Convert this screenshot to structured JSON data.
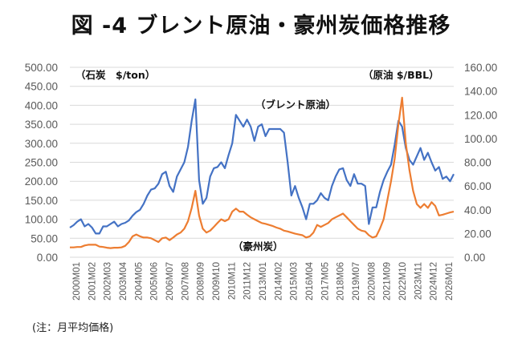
{
  "title": "図 -4 ブレント原油・豪州炭価格推移",
  "note": "(注：月平均価格)",
  "chart_data": {
    "type": "line",
    "title": "図 -4 ブレント原油・豪州炭価格推移",
    "left_axis": {
      "label": "（石炭　$/ton）",
      "range": [
        0,
        500
      ],
      "ticks": [
        "0.00",
        "50.00",
        "100.00",
        "150.00",
        "200.00",
        "250.00",
        "300.00",
        "350.00",
        "400.00",
        "450.00",
        "500.00"
      ]
    },
    "right_axis": {
      "label": "（原油 $/BBL）",
      "range": [
        0,
        160
      ],
      "ticks": [
        "0.00",
        "20.00",
        "40.00",
        "60.00",
        "80.00",
        "100.00",
        "120.00",
        "140.00",
        "160.00"
      ]
    },
    "x_tick_labels": [
      "2000M01",
      "2001M02",
      "2002M03",
      "2003M04",
      "2004M05",
      "2005M06",
      "2006M07",
      "2007M08",
      "2008M09",
      "2009M10",
      "2010M11",
      "2011M12",
      "2013M01",
      "2014M02",
      "2015M03",
      "2016M04",
      "2017M05",
      "2018M06",
      "2019M07",
      "2020M08",
      "2021M09",
      "2022M10",
      "2023M11",
      "2024M12",
      "2026M01"
    ],
    "x_range": [
      "2000M01",
      "2026M01"
    ],
    "grid": true,
    "annotations": [
      "（ブレント原油）",
      "（豪州炭）"
    ],
    "series": [
      {
        "name": "ブレント原油",
        "axis": "right",
        "color": "#4472C4",
        "x": [
          2000.0,
          2000.25,
          2000.5,
          2000.75,
          2001.0,
          2001.25,
          2001.5,
          2001.75,
          2002.0,
          2002.25,
          2002.5,
          2002.75,
          2003.0,
          2003.25,
          2003.5,
          2003.75,
          2004.0,
          2004.25,
          2004.5,
          2004.75,
          2005.0,
          2005.25,
          2005.5,
          2005.75,
          2006.0,
          2006.25,
          2006.5,
          2006.75,
          2007.0,
          2007.25,
          2007.5,
          2007.75,
          2008.0,
          2008.25,
          2008.5,
          2008.75,
          2009.0,
          2009.25,
          2009.5,
          2009.75,
          2010.0,
          2010.25,
          2010.5,
          2010.75,
          2011.0,
          2011.25,
          2011.5,
          2011.75,
          2012.0,
          2012.25,
          2012.5,
          2012.75,
          2013.0,
          2013.25,
          2013.5,
          2013.75,
          2014.0,
          2014.25,
          2014.5,
          2014.75,
          2015.0,
          2015.25,
          2015.5,
          2015.75,
          2016.0,
          2016.25,
          2016.5,
          2016.75,
          2017.0,
          2017.25,
          2017.5,
          2017.75,
          2018.0,
          2018.25,
          2018.5,
          2018.75,
          2019.0,
          2019.25,
          2019.5,
          2019.75,
          2020.0,
          2020.25,
          2020.5,
          2020.75,
          2021.0,
          2021.25,
          2021.5,
          2021.75,
          2022.0,
          2022.25,
          2022.5,
          2022.75,
          2023.0,
          2023.25,
          2023.5,
          2023.75,
          2024.0,
          2024.25,
          2024.5,
          2024.75,
          2025.0,
          2025.25,
          2025.5,
          2025.75,
          2026.0
        ],
        "values": [
          25,
          27,
          30,
          32,
          26,
          28,
          25,
          20,
          20,
          26,
          26,
          28,
          30,
          26,
          28,
          29,
          31,
          35,
          38,
          40,
          45,
          52,
          57,
          58,
          62,
          70,
          72,
          60,
          55,
          68,
          74,
          80,
          93,
          115,
          133,
          65,
          45,
          50,
          68,
          75,
          76,
          80,
          75,
          86,
          96,
          120,
          115,
          110,
          116,
          110,
          98,
          110,
          112,
          102,
          108,
          108,
          108,
          108,
          105,
          80,
          52,
          60,
          50,
          42,
          32,
          45,
          45,
          48,
          54,
          50,
          48,
          60,
          68,
          74,
          75,
          65,
          60,
          70,
          62,
          62,
          60,
          28,
          42,
          42,
          55,
          65,
          72,
          78,
          95,
          115,
          110,
          92,
          82,
          78,
          85,
          92,
          82,
          88,
          80,
          73,
          76,
          66,
          68,
          64,
          70
        ]
      },
      {
        "name": "豪州炭",
        "axis": "left",
        "color": "#ED7D31",
        "x": [
          2000.0,
          2000.25,
          2000.5,
          2000.75,
          2001.0,
          2001.25,
          2001.5,
          2001.75,
          2002.0,
          2002.25,
          2002.5,
          2002.75,
          2003.0,
          2003.25,
          2003.5,
          2003.75,
          2004.0,
          2004.25,
          2004.5,
          2004.75,
          2005.0,
          2005.25,
          2005.5,
          2005.75,
          2006.0,
          2006.25,
          2006.5,
          2006.75,
          2007.0,
          2007.25,
          2007.5,
          2007.75,
          2008.0,
          2008.25,
          2008.5,
          2008.75,
          2009.0,
          2009.25,
          2009.5,
          2009.75,
          2010.0,
          2010.25,
          2010.5,
          2010.75,
          2011.0,
          2011.25,
          2011.5,
          2011.75,
          2012.0,
          2012.25,
          2012.5,
          2012.75,
          2013.0,
          2013.25,
          2013.5,
          2013.75,
          2014.0,
          2014.25,
          2014.5,
          2014.75,
          2015.0,
          2015.25,
          2015.5,
          2015.75,
          2016.0,
          2016.25,
          2016.5,
          2016.75,
          2017.0,
          2017.25,
          2017.5,
          2017.75,
          2018.0,
          2018.25,
          2018.5,
          2018.75,
          2019.0,
          2019.25,
          2019.5,
          2019.75,
          2020.0,
          2020.25,
          2020.5,
          2020.75,
          2021.0,
          2021.25,
          2021.5,
          2021.75,
          2022.0,
          2022.25,
          2022.5,
          2022.75,
          2023.0,
          2023.25,
          2023.5,
          2023.75,
          2024.0,
          2024.25,
          2024.5,
          2024.75,
          2025.0,
          2025.25,
          2025.5,
          2025.75,
          2026.0
        ],
        "values": [
          26,
          26,
          27,
          27,
          31,
          33,
          33,
          33,
          28,
          27,
          25,
          24,
          25,
          25,
          26,
          30,
          40,
          55,
          60,
          55,
          52,
          52,
          50,
          45,
          40,
          50,
          52,
          45,
          52,
          60,
          65,
          75,
          95,
          130,
          175,
          110,
          75,
          65,
          70,
          80,
          90,
          100,
          95,
          100,
          120,
          128,
          120,
          120,
          112,
          105,
          100,
          95,
          90,
          88,
          85,
          82,
          78,
          75,
          70,
          68,
          65,
          62,
          60,
          58,
          52,
          55,
          65,
          85,
          80,
          85,
          90,
          100,
          105,
          110,
          115,
          105,
          95,
          85,
          75,
          70,
          68,
          58,
          52,
          55,
          75,
          100,
          150,
          200,
          260,
          350,
          420,
          300,
          230,
          175,
          140,
          130,
          140,
          130,
          145,
          135,
          110,
          112,
          115,
          118,
          120
        ]
      }
    ]
  }
}
